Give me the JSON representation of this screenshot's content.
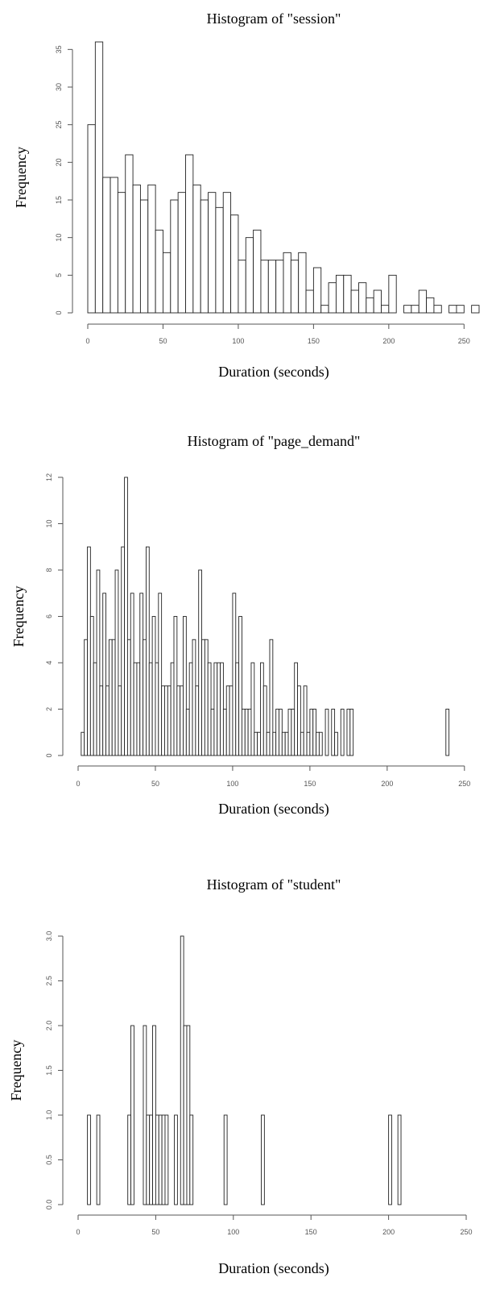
{
  "chart_data": [
    {
      "type": "bar",
      "title": "Histogram of \"session\"",
      "xlabel": "Duration  (seconds)",
      "ylabel": "Frequency",
      "xlim": [
        0,
        260
      ],
      "ylim": [
        0,
        36
      ],
      "x_ticks": [
        0,
        50,
        100,
        150,
        200,
        250
      ],
      "y_ticks": [
        0,
        5,
        10,
        15,
        20,
        25,
        30,
        35
      ],
      "bin_width": 5,
      "bins_start": 0,
      "values": [
        25,
        36,
        18,
        18,
        16,
        21,
        17,
        15,
        17,
        11,
        8,
        15,
        16,
        21,
        17,
        15,
        16,
        14,
        16,
        13,
        7,
        10,
        11,
        7,
        7,
        7,
        8,
        7,
        8,
        3,
        6,
        1,
        4,
        5,
        5,
        3,
        4,
        2,
        3,
        1,
        5,
        0,
        1,
        1,
        3,
        2,
        1,
        0,
        1,
        1,
        0,
        1
      ]
    },
    {
      "type": "bar",
      "title": "Histogram of \"page_demand\"",
      "xlabel": "Duration  (seconds)",
      "ylabel": "Frequency",
      "xlim": [
        0,
        260
      ],
      "ylim": [
        0,
        12
      ],
      "x_ticks": [
        0,
        50,
        100,
        150,
        200,
        250
      ],
      "y_ticks": [
        0,
        2,
        4,
        6,
        8,
        10,
        12
      ],
      "bin_width": 2,
      "bins_start": 2,
      "values": [
        1,
        5,
        9,
        6,
        4,
        8,
        3,
        7,
        3,
        5,
        5,
        8,
        3,
        9,
        12,
        5,
        7,
        4,
        4,
        7,
        5,
        9,
        4,
        6,
        4,
        7,
        3,
        3,
        3,
        4,
        6,
        3,
        3,
        6,
        2,
        4,
        5,
        3,
        8,
        5,
        5,
        4,
        2,
        4,
        4,
        4,
        2,
        3,
        3,
        7,
        4,
        6,
        2,
        2,
        2,
        4,
        1,
        1,
        4,
        3,
        1,
        5,
        1,
        2,
        2,
        1,
        1,
        2,
        2,
        4,
        3,
        1,
        3,
        1,
        2,
        2,
        1,
        1,
        0,
        2,
        0,
        2,
        1,
        0,
        2,
        0,
        2,
        2,
        0,
        0,
        0,
        0,
        0,
        0,
        0,
        0,
        0,
        0,
        0,
        0,
        0,
        0,
        0,
        0,
        0,
        0,
        0,
        0,
        0,
        0,
        0,
        0,
        0,
        0,
        0,
        0,
        0,
        0,
        2,
        0
      ]
    },
    {
      "type": "bar",
      "title": "Histogram of \"student\"",
      "xlabel": "Duration  (seconds)",
      "ylabel": "Frequency",
      "xlim": [
        0,
        250
      ],
      "ylim": [
        0,
        3.0
      ],
      "x_ticks": [
        0,
        50,
        100,
        150,
        200,
        250
      ],
      "y_ticks": [
        "0.0",
        "0.5",
        "1.0",
        "1.5",
        "2.0",
        "2.5",
        "3.0"
      ],
      "bin_width": 2,
      "bins_start": 6,
      "values": [
        1,
        0,
        0,
        1,
        0,
        0,
        0,
        0,
        0,
        0,
        0,
        0,
        0,
        1,
        2,
        0,
        0,
        0,
        2,
        1,
        1,
        2,
        1,
        1,
        1,
        1,
        0,
        0,
        1,
        0,
        3,
        2,
        2,
        1,
        0,
        0,
        0,
        0,
        0,
        0,
        0,
        0,
        0,
        0,
        1,
        0,
        0,
        0,
        0,
        0,
        0,
        0,
        0,
        0,
        0,
        0,
        1,
        0,
        0,
        0,
        0,
        0,
        0,
        0,
        0,
        0,
        0,
        0,
        0,
        0,
        0,
        0,
        0,
        0,
        0,
        0,
        0,
        0,
        0,
        0,
        0,
        0,
        0,
        0,
        0,
        0,
        0,
        0,
        0,
        0,
        0,
        0,
        0,
        0,
        0,
        0,
        0,
        1,
        0,
        0,
        1
      ]
    }
  ]
}
